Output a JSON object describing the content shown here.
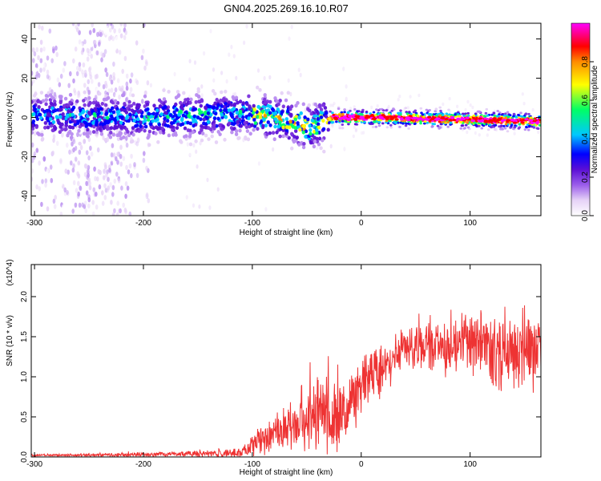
{
  "title": "GN04.2025.269.16.10.R07",
  "chart_data": [
    {
      "type": "heatmap",
      "title": "GN04.2025.269.16.10.R07",
      "xlabel": "Height of straight line (km)",
      "ylabel": "Frequency (Hz)",
      "xlim": [
        -303,
        165
      ],
      "ylim": [
        -50,
        48
      ],
      "xticks": [
        -300,
        -200,
        -100,
        0,
        100
      ],
      "yticks": [
        -40,
        -20,
        0,
        20,
        40
      ],
      "colorbar": {
        "label": "Normalized spectral amplitude",
        "range": [
          0.0,
          1.0
        ],
        "ticks": [
          0.0,
          0.2,
          0.4,
          0.6,
          0.8
        ],
        "colormap": [
          "#ffffff",
          "#e6d2f7",
          "#b88cf0",
          "#7a32dd",
          "#5b0fd6",
          "#0000ff",
          "#00c8ff",
          "#00ff66",
          "#ffff00",
          "#ff8c00",
          "#ff0000",
          "#ff00ff"
        ]
      },
      "band": {
        "center_freq_hz": [
          {
            "x": -300,
            "y": 1
          },
          {
            "x": -200,
            "y": 0
          },
          {
            "x": -100,
            "y": 2
          },
          {
            "x": -60,
            "y": -3
          },
          {
            "x": -45,
            "y": -5
          },
          {
            "x": -30,
            "y": 0
          },
          {
            "x": 0,
            "y": 0
          },
          {
            "x": 100,
            "y": -1
          },
          {
            "x": 165,
            "y": -2
          }
        ],
        "note": "noisy broadband speckle between -300 and -200 km; narrow high-amplitude band near 0 Hz for heights above -30 km"
      }
    },
    {
      "type": "line",
      "xlabel": "Height of straight line (km)",
      "ylabel": "SNR (10 * v/v)",
      "yscale_label": "(x10^4)",
      "xlim": [
        -303,
        165
      ],
      "ylim": [
        0,
        2.4
      ],
      "xticks": [
        -300,
        -200,
        -100,
        0,
        100
      ],
      "yticks": [
        0.0,
        0.5,
        1.0,
        1.5,
        2.0
      ],
      "series": [
        {
          "name": "SNR",
          "color": "#ee3333",
          "envelope": [
            {
              "x": -303,
              "mean": 0.02,
              "spread": 0.02
            },
            {
              "x": -200,
              "mean": 0.03,
              "spread": 0.04
            },
            {
              "x": -150,
              "mean": 0.04,
              "spread": 0.06
            },
            {
              "x": -110,
              "mean": 0.05,
              "spread": 0.08
            },
            {
              "x": -100,
              "mean": 0.15,
              "spread": 0.2
            },
            {
              "x": -60,
              "mean": 0.4,
              "spread": 0.5
            },
            {
              "x": -40,
              "mean": 0.55,
              "spread": 0.8
            },
            {
              "x": -20,
              "mean": 0.5,
              "spread": 0.8
            },
            {
              "x": 0,
              "mean": 0.9,
              "spread": 0.6
            },
            {
              "x": 40,
              "mean": 1.35,
              "spread": 0.4
            },
            {
              "x": 100,
              "mean": 1.4,
              "spread": 0.6
            },
            {
              "x": 140,
              "mean": 1.3,
              "spread": 0.8
            },
            {
              "x": 165,
              "mean": 1.35,
              "spread": 0.7
            }
          ]
        }
      ]
    }
  ]
}
